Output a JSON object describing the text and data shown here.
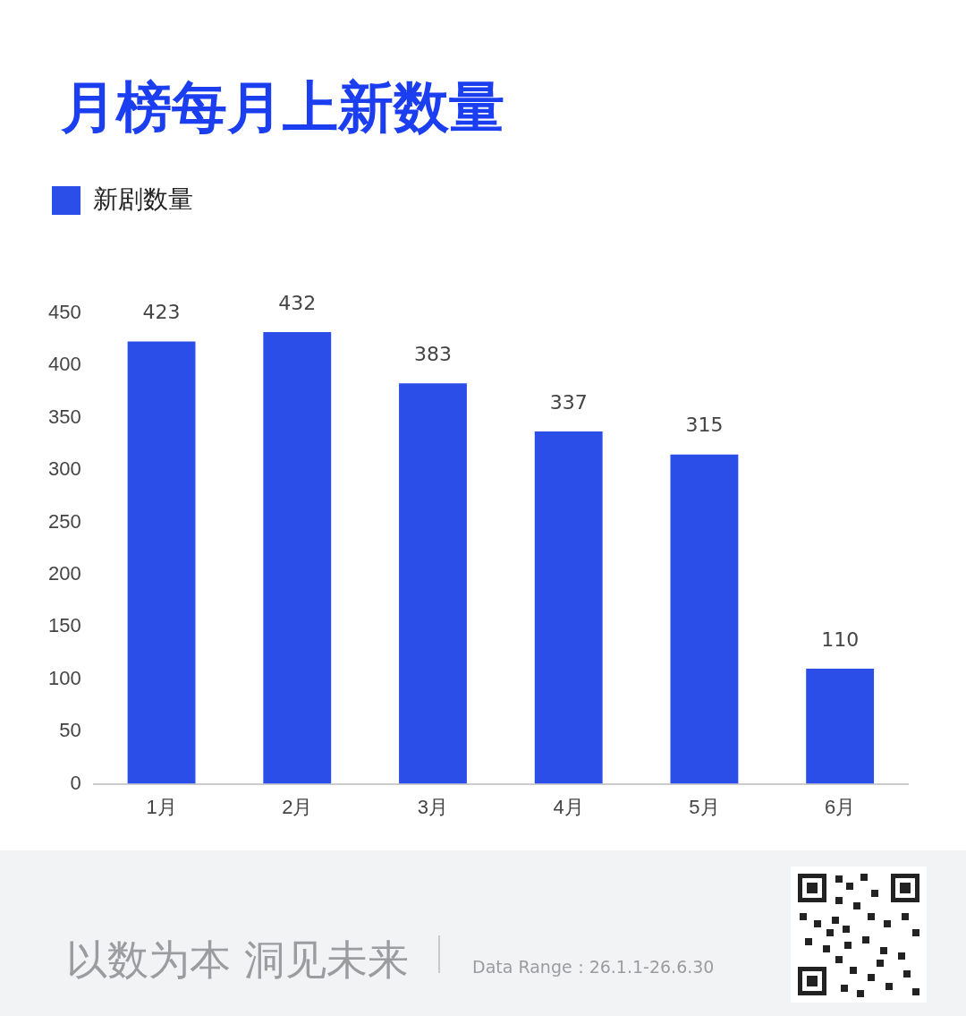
{
  "chart_data": {
    "type": "bar",
    "title": "月榜每月上新数量",
    "categories": [
      "1月",
      "2月",
      "3月",
      "4月",
      "5月",
      "6月"
    ],
    "series": [
      {
        "name": "新剧数量",
        "color": "#2b4de8",
        "values": [
          423,
          432,
          383,
          337,
          315,
          110
        ]
      }
    ],
    "ylim": [
      0,
      450
    ],
    "yticks": [
      0,
      50,
      100,
      150,
      200,
      250,
      300,
      350,
      400,
      450
    ],
    "grid": false,
    "legend": "top left",
    "data_labels": true,
    "annotations": [
      "以数为本 洞见未来",
      "Data Range：26.1.1-26.6.30"
    ]
  }
}
